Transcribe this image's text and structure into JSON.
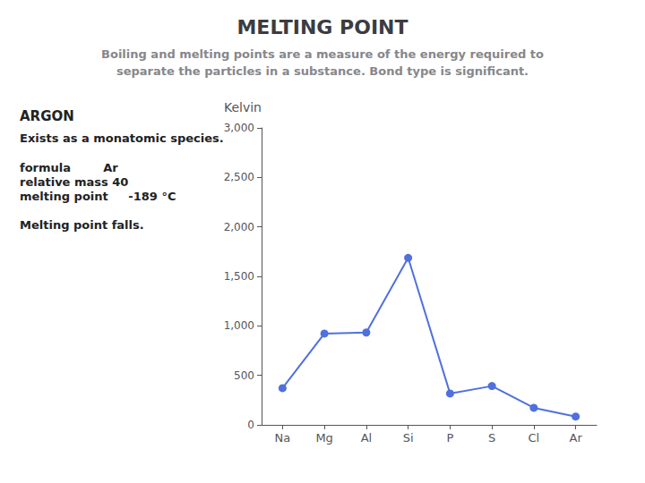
{
  "chart_data": {
    "type": "line",
    "title": "MELTING POINT",
    "subtitle": "Boiling and melting points are a measure of the energy required to\nseparate the particles in a substance. Bond type is significant.",
    "annotations": [
      "ARGON",
      "Exists as a monatomic species.",
      "formula        Ar",
      "relative mass 40",
      "melting point     -189 °C",
      "Melting point falls."
    ],
    "y_label": "Kelvin",
    "categories": [
      "Na",
      "Mg",
      "Al",
      "Si",
      "P",
      "S",
      "Cl",
      "Ar"
    ],
    "values": [
      371,
      922,
      933,
      1687,
      317,
      392,
      172,
      84
    ],
    "ylim": [
      0,
      3000
    ],
    "yticks": [
      0,
      500,
      1000,
      1500,
      2000,
      2500,
      3000
    ],
    "marker": "circle",
    "grid": false
  }
}
